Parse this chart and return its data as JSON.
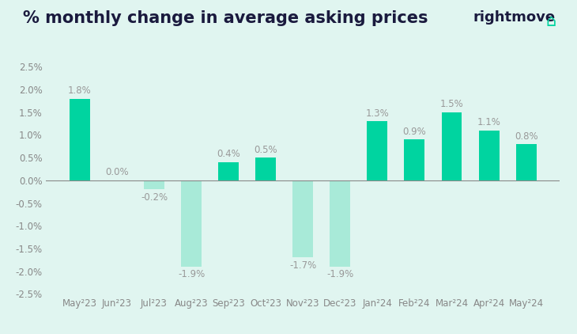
{
  "title": "% monthly change in average asking prices",
  "categories": [
    "May²23",
    "Jun²23",
    "Jul²23",
    "Aug²23",
    "Sep²23",
    "Oct²23",
    "Nov²23",
    "Dec²23",
    "Jan²24",
    "Feb²24",
    "Mar²24",
    "Apr²24",
    "May²24"
  ],
  "values": [
    1.8,
    0.0,
    -0.2,
    -1.9,
    0.4,
    0.5,
    -1.7,
    -1.9,
    1.3,
    0.9,
    1.5,
    1.1,
    0.8
  ],
  "bar_color_positive": "#00d4a0",
  "bar_color_negative": "#a8ead8",
  "background_color": "#e0f5f0",
  "ylim": [
    -2.5,
    2.5
  ],
  "yticks": [
    -2.5,
    -2.0,
    -1.5,
    -1.0,
    -0.5,
    0.0,
    0.5,
    1.0,
    1.5,
    2.0,
    2.5
  ],
  "title_fontsize": 15,
  "label_fontsize": 8.5,
  "tick_fontsize": 8.5,
  "logo_text": "rightmove",
  "logo_color": "#1a1a3e",
  "logo_icon_color": "#00d4a0",
  "title_color": "#1a1a3e",
  "zero_line_color": "#888888",
  "label_color": "#999999",
  "tick_color": "#888888"
}
